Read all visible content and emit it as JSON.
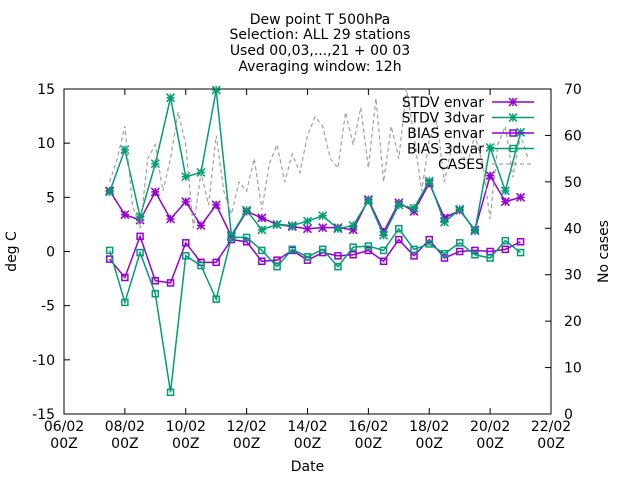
{
  "chart_data": {
    "type": "line",
    "title_lines": [
      "Dew point T 500hPa",
      "Selection: ALL      29 stations",
      "Used 00,03,...,21 + 00 03",
      "Averaging window: 12h"
    ],
    "xlabel": "Date",
    "ylabel": "deg C",
    "y2label": "No cases",
    "xlim": [
      0,
      16
    ],
    "ylim": [
      -15,
      15
    ],
    "y2lim": [
      0,
      70
    ],
    "x_unit": "days since 06/02 00Z",
    "x_ticks": [
      {
        "x": 0,
        "l1": "06/02",
        "l2": "00Z"
      },
      {
        "x": 2,
        "l1": "08/02",
        "l2": "00Z"
      },
      {
        "x": 4,
        "l1": "10/02",
        "l2": "00Z"
      },
      {
        "x": 6,
        "l1": "12/02",
        "l2": "00Z"
      },
      {
        "x": 8,
        "l1": "14/02",
        "l2": "00Z"
      },
      {
        "x": 10,
        "l1": "16/02",
        "l2": "00Z"
      },
      {
        "x": 12,
        "l1": "18/02",
        "l2": "00Z"
      },
      {
        "x": 14,
        "l1": "20/02",
        "l2": "00Z"
      },
      {
        "x": 16,
        "l1": "22/02",
        "l2": "00Z"
      }
    ],
    "y_ticks": [
      15,
      10,
      5,
      0,
      -5,
      -10,
      -15
    ],
    "y2_ticks": [
      70,
      60,
      50,
      40,
      30,
      20,
      10,
      0
    ],
    "x": [
      1.5,
      2,
      2.5,
      3,
      3.5,
      4,
      4.5,
      5,
      5.5,
      6,
      6.5,
      7,
      7.5,
      8,
      8.5,
      9,
      9.5,
      10,
      10.5,
      11,
      11.5,
      12,
      12.5,
      13,
      13.5,
      14,
      14.5,
      15,
      15.25
    ],
    "series": [
      {
        "name": "STDV envar",
        "color": "#9400d3",
        "marker": "star",
        "axis": "y1",
        "values": [
          5.6,
          3.4,
          2.9,
          5.5,
          3.0,
          4.6,
          2.4,
          4.3,
          1.4,
          3.7,
          3.1,
          2.5,
          2.3,
          2.1,
          2.2,
          2.2,
          2.0,
          4.8,
          1.8,
          4.5,
          3.7,
          6.3,
          3.1,
          3.8,
          2.0,
          7.0,
          4.6,
          5.0,
          null
        ]
      },
      {
        "name": "STDV 3dvar",
        "color": "#009e73",
        "marker": "star",
        "axis": "y1",
        "values": [
          5.5,
          9.4,
          3.2,
          8.1,
          14.2,
          6.9,
          7.3,
          14.9,
          1.5,
          3.8,
          2.0,
          2.5,
          2.4,
          2.8,
          3.3,
          2.1,
          2.4,
          4.7,
          1.5,
          4.3,
          4.0,
          6.5,
          2.7,
          3.9,
          1.9,
          9.6,
          5.6,
          11.0,
          null
        ]
      },
      {
        "name": "BIAS envar",
        "color": "#9400d3",
        "marker": "square",
        "axis": "y1",
        "values": [
          -0.7,
          -2.4,
          1.4,
          -2.7,
          -2.9,
          0.8,
          -1.0,
          -1.0,
          1.1,
          0.9,
          -0.9,
          -0.8,
          0.1,
          -0.8,
          -0.1,
          -0.4,
          -0.3,
          0.1,
          -0.9,
          1.1,
          -0.4,
          1.1,
          -0.6,
          0.0,
          0.1,
          0.0,
          0.2,
          0.9,
          null
        ]
      },
      {
        "name": "BIAS 3dvar",
        "color": "#009e73",
        "marker": "square",
        "axis": "y1",
        "values": [
          0.1,
          -4.7,
          -0.1,
          -3.9,
          -13.0,
          -0.4,
          -1.3,
          -4.4,
          1.3,
          1.3,
          0.1,
          -1.4,
          0.2,
          -0.5,
          0.2,
          -1.4,
          0.4,
          0.5,
          0.1,
          2.1,
          0.2,
          0.7,
          -0.2,
          0.8,
          -0.3,
          -0.6,
          1.0,
          -0.1,
          null
        ]
      },
      {
        "name": "CASES",
        "color": "#a0a0a0",
        "marker": "none",
        "dash": true,
        "axis": "y2",
        "x": [
          1.5,
          1.75,
          2,
          2.25,
          2.5,
          2.75,
          3,
          3.25,
          3.5,
          3.75,
          4,
          4.25,
          4.5,
          4.75,
          5,
          5.25,
          5.5,
          5.75,
          6,
          6.25,
          6.5,
          6.75,
          7,
          7.25,
          7.5,
          7.75,
          8,
          8.25,
          8.5,
          8.75,
          9,
          9.25,
          9.5,
          9.75,
          10,
          10.25,
          10.5,
          10.75,
          11,
          11.25,
          11.5,
          11.75,
          12,
          12.25,
          12.5,
          12.75,
          13,
          13.25,
          13.5,
          13.75,
          14,
          14.25,
          14.5,
          14.75,
          15,
          15.25
        ],
        "values": [
          50,
          55,
          62,
          45,
          40,
          55,
          58,
          48,
          55,
          65,
          58,
          40,
          52,
          45,
          60,
          48,
          43,
          50,
          48,
          55,
          44,
          54,
          58,
          50,
          56,
          52,
          60,
          64,
          62,
          55,
          53,
          65,
          58,
          66,
          53,
          68,
          50,
          62,
          55,
          70,
          60,
          48,
          59,
          63,
          50,
          58,
          57,
          54,
          60,
          54,
          42,
          58,
          62,
          51,
          60,
          55
        ]
      }
    ]
  }
}
